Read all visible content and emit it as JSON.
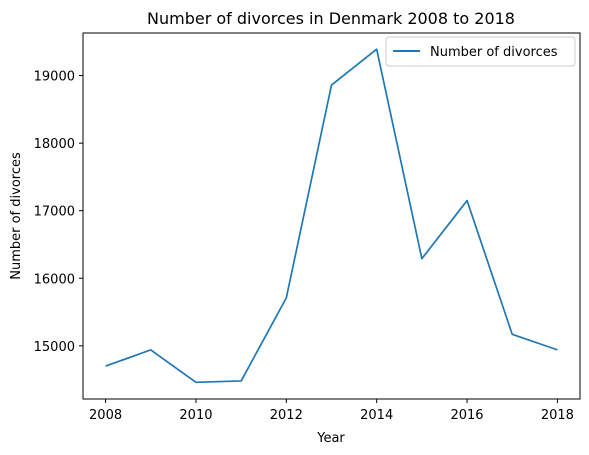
{
  "chart_data": {
    "type": "line",
    "title": "Number of divorces in Denmark 2008 to 2018",
    "xlabel": "Year",
    "ylabel": "Number of divorces",
    "x": [
      2008,
      2009,
      2010,
      2011,
      2012,
      2013,
      2014,
      2015,
      2016,
      2017,
      2018
    ],
    "series": [
      {
        "name": "Number of divorces",
        "color": "#1f77b4",
        "values": [
          14700,
          14940,
          14460,
          14480,
          15710,
          18860,
          19390,
          16290,
          17150,
          15170,
          14940
        ]
      }
    ],
    "xticks": [
      "2008",
      "2010",
      "2012",
      "2014",
      "2016",
      "2018"
    ],
    "yticks": [
      "15000",
      "16000",
      "17000",
      "18000",
      "19000"
    ],
    "xlim": [
      2007.5,
      2018.5
    ],
    "ylim": [
      14213,
      19630
    ],
    "grid": false,
    "legend_position": "top-right"
  }
}
